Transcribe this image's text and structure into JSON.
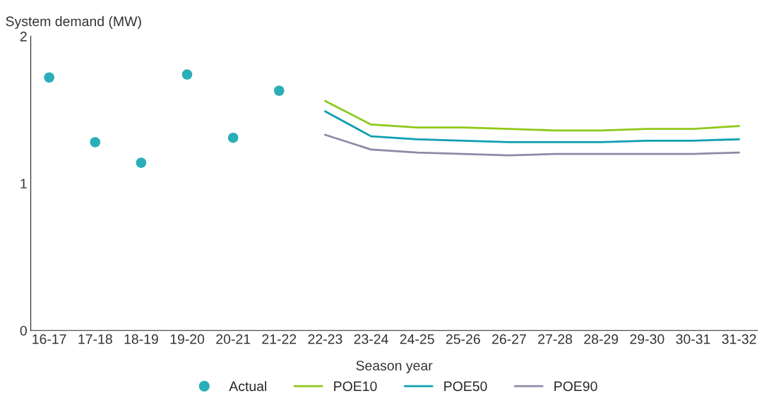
{
  "chart_data": {
    "type": "line",
    "xlabel": "Season year",
    "ylabel": "System demand (MW)",
    "categories": [
      "16-17",
      "17-18",
      "18-19",
      "19-20",
      "20-21",
      "21-22",
      "22-23",
      "23-24",
      "24-25",
      "25-26",
      "26-27",
      "27-28",
      "28-29",
      "29-30",
      "30-31",
      "31-32"
    ],
    "series": [
      {
        "name": "Actual",
        "type": "scatter",
        "marker": "circle",
        "color": "#2aaeb8",
        "values": [
          1.72,
          1.28,
          1.14,
          1.74,
          1.31,
          1.63,
          null,
          null,
          null,
          null,
          null,
          null,
          null,
          null,
          null,
          null
        ]
      },
      {
        "name": "POE10",
        "color": "#8dc919",
        "values": [
          null,
          null,
          null,
          null,
          null,
          null,
          1.56,
          1.4,
          1.38,
          1.38,
          1.37,
          1.36,
          1.36,
          1.37,
          1.37,
          1.39
        ]
      },
      {
        "name": "POE50",
        "color": "#0e9fb0",
        "values": [
          null,
          null,
          null,
          null,
          null,
          null,
          1.49,
          1.32,
          1.3,
          1.29,
          1.28,
          1.28,
          1.28,
          1.29,
          1.29,
          1.3
        ]
      },
      {
        "name": "POE90",
        "color": "#8c8aa6",
        "values": [
          null,
          null,
          null,
          null,
          null,
          null,
          1.33,
          1.23,
          1.21,
          1.2,
          1.19,
          1.2,
          1.2,
          1.2,
          1.2,
          1.21
        ]
      }
    ],
    "ylim": [
      0,
      2
    ],
    "yticks": [
      0,
      1,
      2
    ],
    "grid": false,
    "legend": "bottom"
  }
}
